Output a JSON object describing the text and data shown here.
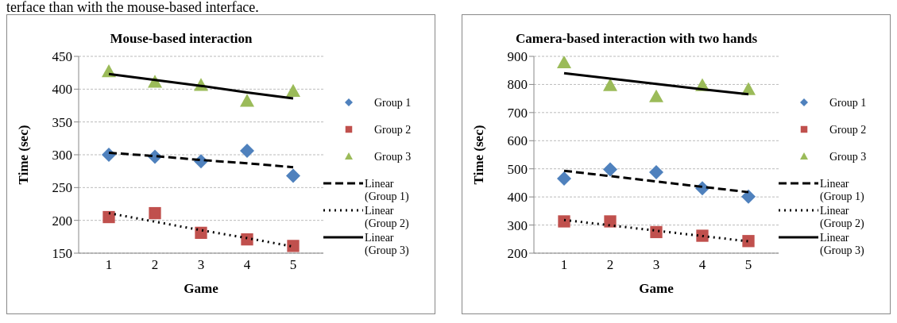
{
  "chart_data": [
    {
      "type": "other",
      "annotations": [
        "terface than with the mouse-based interface."
      ]
    },
    {
      "type": "scatter",
      "title": "Mouse-based interaction",
      "xlabel": "Game",
      "ylabel": "Time (sec)",
      "categories": [
        "1",
        "2",
        "3",
        "4",
        "5"
      ],
      "ylim": [
        150,
        450
      ],
      "yticks": [
        150,
        200,
        250,
        300,
        350,
        400,
        450
      ],
      "grid": "y",
      "legend": "right",
      "series": [
        {
          "name": "Group 1",
          "type": "scatter",
          "marker": "diamond",
          "color": "#4f81bd",
          "values": [
            300,
            297,
            290,
            306,
            268
          ]
        },
        {
          "name": "Group 2",
          "type": "scatter",
          "marker": "square",
          "color": "#c0504d",
          "values": [
            205,
            211,
            181,
            171,
            161
          ]
        },
        {
          "name": "Group 3",
          "type": "scatter",
          "marker": "triangle",
          "color": "#9bbb59",
          "values": [
            427,
            411,
            406,
            382,
            397
          ]
        },
        {
          "name": "Linear (Group 1)",
          "type": "line",
          "line_style": "dashed",
          "color": "#000000",
          "values": [
            303,
            298,
            292,
            287,
            281
          ]
        },
        {
          "name": "Linear (Group 2)",
          "type": "line",
          "line_style": "dotted",
          "color": "#000000",
          "values": [
            211,
            198,
            185,
            173,
            160
          ]
        },
        {
          "name": "Linear (Group 3)",
          "type": "line",
          "line_style": "solid",
          "color": "#000000",
          "values": [
            423,
            414,
            405,
            395,
            386
          ]
        }
      ]
    },
    {
      "type": "scatter",
      "title": "Camera-based interaction with two hands",
      "xlabel": "Game",
      "ylabel": "Time (sec)",
      "categories": [
        "1",
        "2",
        "3",
        "4",
        "5"
      ],
      "ylim": [
        200,
        900
      ],
      "yticks": [
        200,
        300,
        400,
        500,
        600,
        700,
        800,
        900
      ],
      "grid": "y",
      "legend": "right",
      "series": [
        {
          "name": "Group 1",
          "type": "scatter",
          "marker": "diamond",
          "color": "#4f81bd",
          "values": [
            465,
            498,
            488,
            431,
            401
          ]
        },
        {
          "name": "Group 2",
          "type": "scatter",
          "marker": "square",
          "color": "#c0504d",
          "values": [
            313,
            313,
            275,
            262,
            243
          ]
        },
        {
          "name": "Group 3",
          "type": "scatter",
          "marker": "triangle",
          "color": "#9bbb59",
          "values": [
            878,
            797,
            757,
            797,
            783
          ]
        },
        {
          "name": "Linear (Group 1)",
          "type": "line",
          "line_style": "dashed",
          "color": "#000000",
          "values": [
            493,
            474,
            455,
            436,
            417
          ]
        },
        {
          "name": "Linear (Group 2)",
          "type": "line",
          "line_style": "dotted",
          "color": "#000000",
          "values": [
            318,
            299,
            280,
            261,
            242
          ]
        },
        {
          "name": "Linear (Group 3)",
          "type": "line",
          "line_style": "solid",
          "color": "#000000",
          "values": [
            840,
            821,
            802,
            783,
            765
          ]
        }
      ]
    }
  ]
}
